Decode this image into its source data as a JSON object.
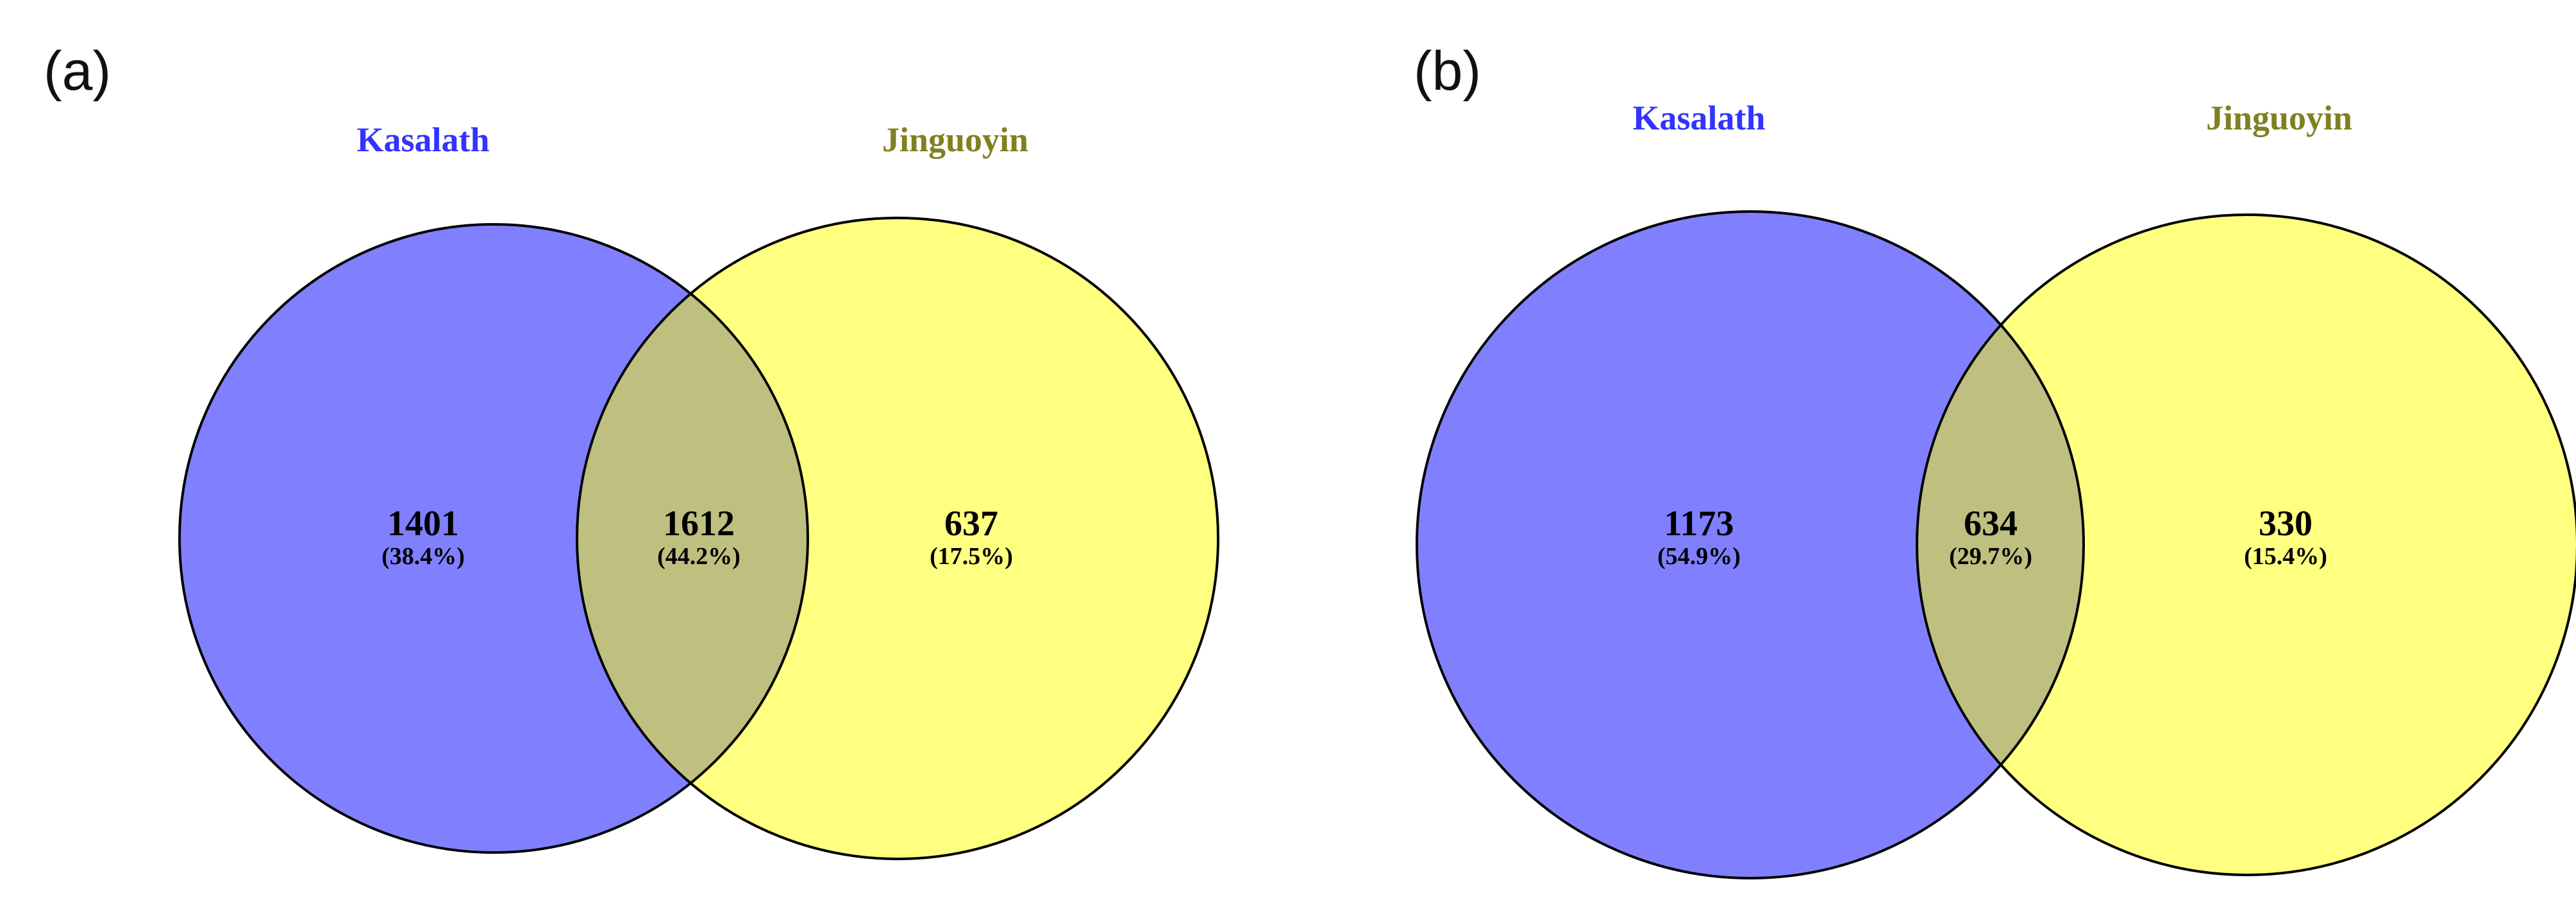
{
  "panels": [
    {
      "label": "(a)",
      "left_set": "Kasalath",
      "right_set": "Jinguoyin",
      "regions": {
        "left_only": {
          "count": "1401",
          "percent": "(38.4%)"
        },
        "overlap": {
          "count": "1612",
          "percent": "(44.2%)"
        },
        "right_only": {
          "count": "637",
          "percent": "(17.5%)"
        }
      }
    },
    {
      "label": "(b)",
      "left_set": "Kasalath",
      "right_set": "Jinguoyin",
      "regions": {
        "left_only": {
          "count": "1173",
          "percent": "(54.9%)"
        },
        "overlap": {
          "count": "634",
          "percent": "(29.7%)"
        },
        "right_only": {
          "count": "330",
          "percent": "(15.4%)"
        }
      }
    }
  ],
  "colors": {
    "left_fill": "#8080ff",
    "right_fill": "#ffff80",
    "overlap_fill": "#bfbf80",
    "left_title": "#3333ff",
    "right_title": "#808020",
    "outline": "#000000"
  }
}
